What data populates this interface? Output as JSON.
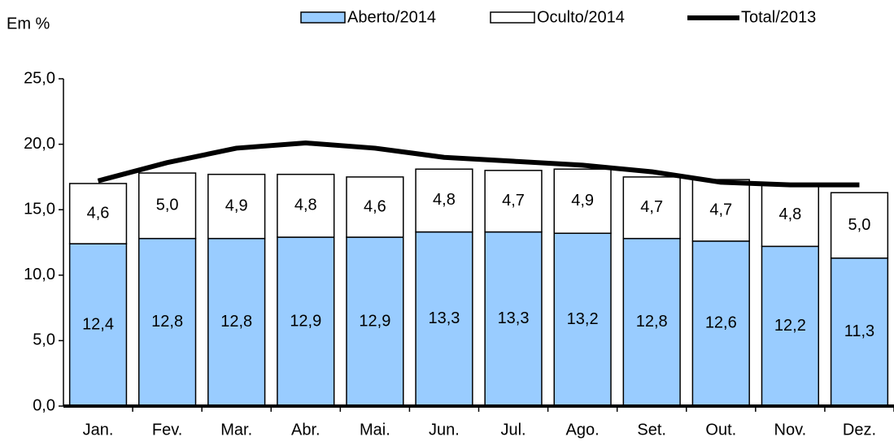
{
  "chart_data": {
    "type": "bar",
    "stacked": true,
    "ylabel": "Em %",
    "categories": [
      "Jan.",
      "Fev.",
      "Mar.",
      "Abr.",
      "Mai.",
      "Jun.",
      "Jul.",
      "Ago.",
      "Set.",
      "Out.",
      "Nov.",
      "Dez."
    ],
    "series": [
      {
        "name": "Aberto/2014",
        "type": "bar",
        "color": "#99ccff",
        "values": [
          12.4,
          12.8,
          12.8,
          12.9,
          12.9,
          13.3,
          13.3,
          13.2,
          12.8,
          12.6,
          12.2,
          11.3
        ],
        "value_labels": [
          "12,4",
          "12,8",
          "12,8",
          "12,9",
          "12,9",
          "13,3",
          "13,3",
          "13,2",
          "12,8",
          "12,6",
          "12,2",
          "11,3"
        ]
      },
      {
        "name": "Oculto/2014",
        "type": "bar",
        "color": "#ffffff",
        "values": [
          4.6,
          5.0,
          4.9,
          4.8,
          4.6,
          4.8,
          4.7,
          4.9,
          4.7,
          4.7,
          4.8,
          5.0
        ],
        "value_labels": [
          "4,6",
          "5,0",
          "4,9",
          "4,8",
          "4,6",
          "4,8",
          "4,7",
          "4,9",
          "4,7",
          "4,7",
          "4,8",
          "5,0"
        ]
      },
      {
        "name": "Total/2013",
        "type": "line",
        "color": "#000000",
        "values": [
          17.2,
          18.6,
          19.7,
          20.1,
          19.7,
          19.0,
          18.7,
          18.4,
          17.9,
          17.1,
          16.9,
          16.9
        ]
      }
    ],
    "ylim": [
      0,
      25
    ],
    "yticks": [
      {
        "value": 0,
        "label": "0,0"
      },
      {
        "value": 5,
        "label": "5,0"
      },
      {
        "value": 10,
        "label": "10,0"
      },
      {
        "value": 15,
        "label": "15,0"
      },
      {
        "value": 20,
        "label": "20,0"
      },
      {
        "value": 25,
        "label": "25,0"
      }
    ],
    "grid": false
  }
}
